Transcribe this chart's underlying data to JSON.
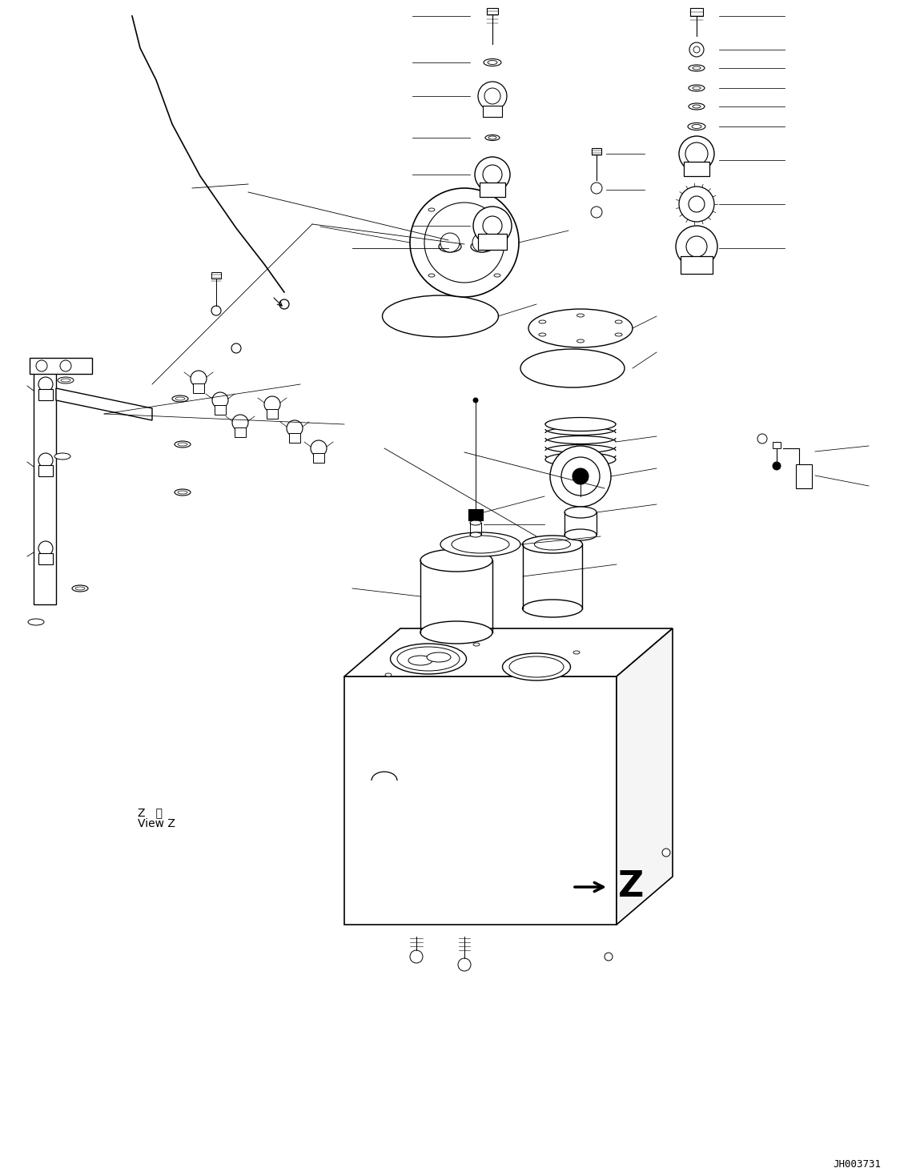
{
  "background_color": "#ffffff",
  "line_color": "#000000",
  "figure_width": 11.49,
  "figure_height": 14.69,
  "watermark": "JH003731",
  "view_label_line1": "Z   視",
  "view_label_line2": "View Z",
  "arrow_label": "Z"
}
